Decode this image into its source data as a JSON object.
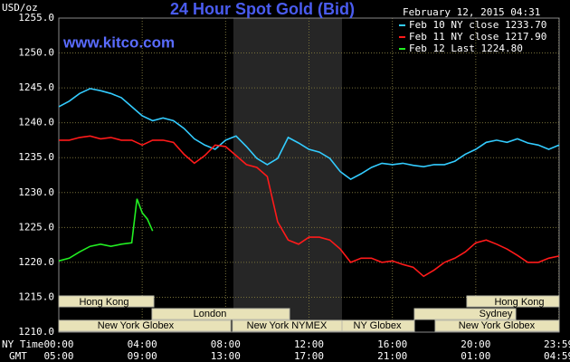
{
  "chart_data": {
    "type": "line",
    "title": "24 Hour Spot Gold (Bid)",
    "unit_label": "USD/oz",
    "date_label": "February 12, 2015 04:31",
    "site": "www.kitco.com",
    "x_row_label": "NY Time",
    "x2_row_label": "GMT",
    "xlim": [
      0,
      24
    ],
    "xticks": [
      {
        "value": 0,
        "label": "00:00"
      },
      {
        "value": 4,
        "label": "04:00"
      },
      {
        "value": 8,
        "label": "08:00"
      },
      {
        "value": 12,
        "label": "12:00"
      },
      {
        "value": 16,
        "label": "16:00"
      },
      {
        "value": 20,
        "label": "20:00"
      },
      {
        "value": 23.983,
        "label": "23:59"
      }
    ],
    "x2_tick_labels": [
      "05:00",
      "09:00",
      "13:00",
      "17:00",
      "21:00",
      "01:00",
      "04:59"
    ],
    "ylim": [
      1210,
      1255
    ],
    "yticks": [
      {
        "value": 1210,
        "label": "1210.0"
      },
      {
        "value": 1215,
        "label": "1215.0"
      },
      {
        "value": 1220,
        "label": "1220.0"
      },
      {
        "value": 1225,
        "label": "1225.0"
      },
      {
        "value": 1230,
        "label": "1230.0"
      },
      {
        "value": 1235,
        "label": "1235.0"
      },
      {
        "value": 1240,
        "label": "1240.0"
      },
      {
        "value": 1245,
        "label": "1245.0"
      },
      {
        "value": 1250,
        "label": "1250.0"
      },
      {
        "value": 1255,
        "label": "1255.0"
      }
    ],
    "grid": true,
    "sessions": [
      "Hong Kong",
      "Hong Kong",
      "London",
      "Sydney",
      "New York Globex",
      "New York NYMEX",
      "NY Globex",
      "New York Globex"
    ],
    "series": [
      {
        "name": "Feb 10 NY close 1233.70",
        "color": "#33ccff",
        "x": [
          0,
          0.5,
          1,
          1.5,
          2,
          2.5,
          3,
          3.5,
          4,
          4.5,
          5,
          5.5,
          6,
          6.5,
          7,
          7.5,
          8,
          8.5,
          9,
          9.5,
          10,
          10.5,
          11,
          11.5,
          12,
          12.5,
          13,
          13.5,
          14,
          14.5,
          15,
          15.5,
          16,
          16.5,
          17,
          17.5,
          18,
          18.5,
          19,
          19.5,
          20,
          20.5,
          21,
          21.5,
          22,
          22.5,
          23,
          23.5,
          24
        ],
        "values": [
          1242.3,
          1243.1,
          1244.2,
          1244.9,
          1244.6,
          1244.2,
          1243.6,
          1242.3,
          1241.0,
          1240.3,
          1240.7,
          1240.3,
          1239.2,
          1237.7,
          1236.8,
          1236.2,
          1237.5,
          1238.1,
          1236.6,
          1234.9,
          1234.0,
          1234.9,
          1237.9,
          1237.1,
          1236.2,
          1235.8,
          1234.9,
          1233.0,
          1231.9,
          1232.7,
          1233.6,
          1234.2,
          1234.0,
          1234.2,
          1233.9,
          1233.7,
          1234.0,
          1234.0,
          1234.5,
          1235.5,
          1236.2,
          1237.2,
          1237.5,
          1237.2,
          1237.7,
          1237.1,
          1236.8,
          1236.2,
          1236.8
        ]
      },
      {
        "name": "Feb 11 NY close 1217.90",
        "color": "#ff1a1a",
        "x": [
          0,
          0.5,
          1,
          1.5,
          2,
          2.5,
          3,
          3.5,
          4,
          4.5,
          5,
          5.5,
          6,
          6.5,
          7,
          7.5,
          8,
          8.5,
          9,
          9.5,
          10,
          10.5,
          11,
          11.5,
          12,
          12.5,
          13,
          13.5,
          14,
          14.5,
          15,
          15.5,
          16,
          16.5,
          17,
          17.5,
          18,
          18.5,
          19,
          19.5,
          20,
          20.5,
          21,
          21.5,
          22,
          22.5,
          23,
          23.5,
          24
        ],
        "values": [
          1237.5,
          1237.5,
          1237.9,
          1238.1,
          1237.7,
          1237.9,
          1237.5,
          1237.5,
          1236.8,
          1237.5,
          1237.5,
          1237.2,
          1235.5,
          1234.2,
          1235.3,
          1236.8,
          1236.6,
          1235.3,
          1234.0,
          1233.6,
          1232.3,
          1225.8,
          1223.2,
          1222.6,
          1223.6,
          1223.6,
          1223.2,
          1221.9,
          1220.0,
          1220.6,
          1220.6,
          1220.0,
          1220.2,
          1219.7,
          1219.3,
          1218.0,
          1218.9,
          1220.0,
          1220.6,
          1221.5,
          1222.8,
          1223.2,
          1222.6,
          1221.9,
          1221.0,
          1220.0,
          1220.0,
          1220.6,
          1220.9
        ]
      },
      {
        "name": "Feb 12 Last 1224.80",
        "color": "#22ee22",
        "x": [
          0,
          0.5,
          1,
          1.5,
          2,
          2.5,
          3,
          3.5,
          3.75,
          4,
          4.25,
          4.5
        ],
        "values": [
          1220.2,
          1220.6,
          1221.5,
          1222.3,
          1222.6,
          1222.3,
          1222.6,
          1222.8,
          1229.1,
          1227.1,
          1226.2,
          1224.5
        ]
      }
    ]
  }
}
